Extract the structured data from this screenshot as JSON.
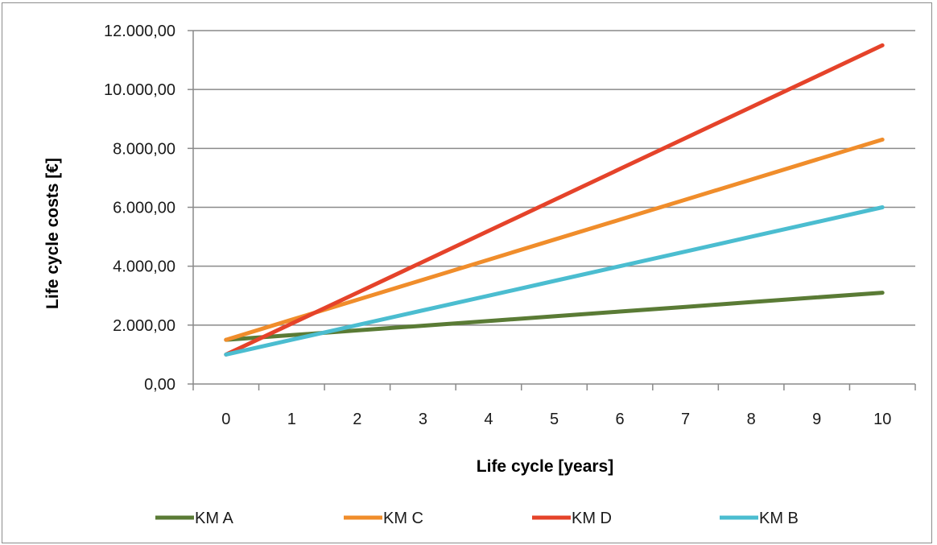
{
  "chart_data": {
    "type": "line",
    "xlabel": "Life cycle [years]",
    "ylabel": "Life cycle costs [€]",
    "categories": [
      "0",
      "1",
      "2",
      "3",
      "4",
      "5",
      "6",
      "7",
      "8",
      "9",
      "10"
    ],
    "y_tick_labels": [
      "0,00",
      "2.000,00",
      "4.000,00",
      "6.000,00",
      "8.000,00",
      "10.000,00",
      "12.000,00"
    ],
    "ylim": [
      0,
      12000
    ],
    "y_ticks": [
      0,
      2000,
      4000,
      6000,
      8000,
      10000,
      12000
    ],
    "grid": "horizontal",
    "legend_position": "bottom",
    "series": [
      {
        "name": "KM A",
        "color": "#5a7b35",
        "values": [
          1500,
          1660,
          1820,
          1980,
          2140,
          2300,
          2460,
          2620,
          2780,
          2940,
          3100
        ]
      },
      {
        "name": "KM C",
        "color": "#f08d2b",
        "values": [
          1500,
          2180,
          2860,
          3540,
          4220,
          4900,
          5580,
          6260,
          6940,
          7620,
          8300
        ]
      },
      {
        "name": "KM D",
        "color": "#e5432a",
        "values": [
          1000,
          2050,
          3100,
          4150,
          5200,
          6250,
          7300,
          8350,
          9400,
          10450,
          11500
        ]
      },
      {
        "name": "KM B",
        "color": "#4bbdd0",
        "values": [
          1000,
          1500,
          2000,
          2500,
          3000,
          3500,
          4000,
          4500,
          5000,
          5500,
          6000
        ]
      }
    ]
  }
}
